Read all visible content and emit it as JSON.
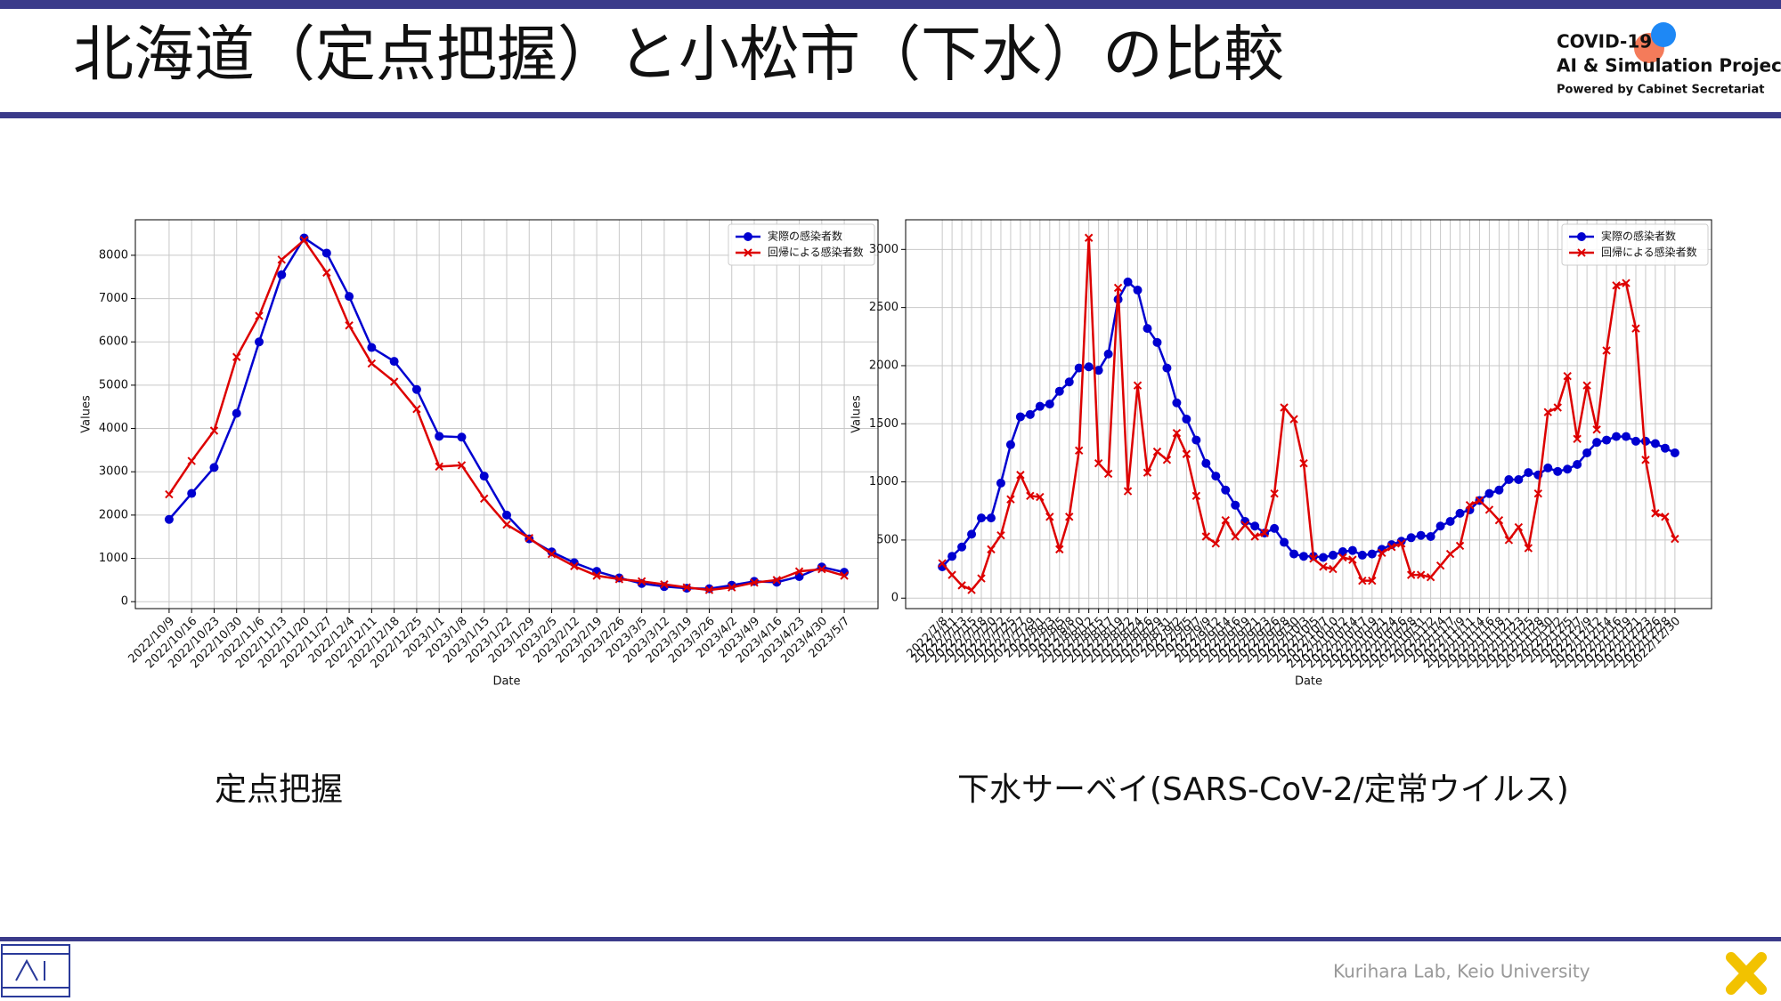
{
  "slide": {
    "title": "北海道（定点把握）と小松市（下水）の比較",
    "logo": [
      "COVID-19",
      "AI & Simulation Project",
      "Powered by Cabinet Secretariat"
    ],
    "captions": [
      "定点把握",
      "下水サーベイ(SARS-CoV-2/定常ウイルス)"
    ],
    "footer": "Kurihara Lab, Keio University"
  },
  "chart_data": [
    {
      "type": "line",
      "xlabel": "Date",
      "ylabel": "Values",
      "grid": true,
      "legend": "upper right",
      "categories": [
        "2022/10/9",
        "2022/10/16",
        "2022/10/23",
        "2022/10/30",
        "2022/11/6",
        "2022/11/13",
        "2022/11/20",
        "2022/11/27",
        "2022/12/4",
        "2022/12/11",
        "2022/12/18",
        "2022/12/25",
        "2023/1/1",
        "2023/1/8",
        "2023/1/15",
        "2023/1/22",
        "2023/1/29",
        "2023/2/5",
        "2023/2/12",
        "2023/2/19",
        "2023/2/26",
        "2023/3/5",
        "2023/3/12",
        "2023/3/19",
        "2023/3/26",
        "2023/4/2",
        "2023/4/9",
        "2023/4/16",
        "2023/4/23",
        "2023/4/30",
        "2023/5/7"
      ],
      "series": [
        {
          "name": "実際の感染者数",
          "color": "#0000d0",
          "marker": "o",
          "values": [
            1900,
            2500,
            3100,
            4350,
            6000,
            7550,
            8400,
            8050,
            7050,
            5870,
            5550,
            4900,
            3820,
            3800,
            2900,
            2000,
            1450,
            1150,
            900,
            700,
            550,
            420,
            350,
            310,
            300,
            380,
            470,
            450,
            580,
            800,
            680
          ]
        },
        {
          "name": "回帰による感染者数",
          "color": "#dd0000",
          "marker": "x",
          "values": [
            2480,
            3250,
            3950,
            5650,
            6600,
            7900,
            8350,
            7600,
            6380,
            5500,
            5080,
            4450,
            3120,
            3150,
            2380,
            1780,
            1470,
            1100,
            820,
            600,
            520,
            470,
            400,
            330,
            270,
            330,
            440,
            500,
            700,
            750,
            600
          ]
        }
      ],
      "ylim": [
        -160,
        8820
      ],
      "yticks": [
        0,
        1000,
        2000,
        3000,
        4000,
        5000,
        6000,
        7000,
        8000
      ]
    },
    {
      "type": "line",
      "xlabel": "Date",
      "ylabel": "Values",
      "grid": true,
      "legend": "upper right",
      "categories": [
        "2022/7/8",
        "2022/7/11",
        "2022/7/13",
        "2022/7/15",
        "2022/7/18",
        "2022/7/20",
        "2022/7/22",
        "2022/7/25",
        "2022/7/27",
        "2022/7/29",
        "2022/8/1",
        "2022/8/3",
        "2022/8/5",
        "2022/8/8",
        "2022/8/10",
        "2022/8/12",
        "2022/8/15",
        "2022/8/17",
        "2022/8/19",
        "2022/8/22",
        "2022/8/24",
        "2022/8/26",
        "2022/8/29",
        "2022/8/31",
        "2022/9/2",
        "2022/9/5",
        "2022/9/7",
        "2022/9/9",
        "2022/9/12",
        "2022/9/14",
        "2022/9/16",
        "2022/9/19",
        "2022/9/21",
        "2022/9/23",
        "2022/9/26",
        "2022/9/28",
        "2022/9/30",
        "2022/10/3",
        "2022/10/5",
        "2022/10/7",
        "2022/10/10",
        "2022/10/12",
        "2022/10/14",
        "2022/10/17",
        "2022/10/19",
        "2022/10/21",
        "2022/10/24",
        "2022/10/26",
        "2022/10/28",
        "2022/10/31",
        "2022/11/2",
        "2022/11/4",
        "2022/11/7",
        "2022/11/9",
        "2022/11/11",
        "2022/11/14",
        "2022/11/16",
        "2022/11/18",
        "2022/11/21",
        "2022/11/23",
        "2022/11/25",
        "2022/11/28",
        "2022/11/30",
        "2022/12/2",
        "2022/12/5",
        "2022/12/7",
        "2022/12/9",
        "2022/12/12",
        "2022/12/14",
        "2022/12/16",
        "2022/12/19",
        "2022/12/21",
        "2022/12/23",
        "2022/12/26",
        "2022/12/28",
        "2022/12/30"
      ],
      "series": [
        {
          "name": "実際の感染者数",
          "color": "#0000d0",
          "marker": "o",
          "values": [
            270,
            360,
            440,
            550,
            690,
            690,
            990,
            1320,
            1560,
            1580,
            1650,
            1670,
            1780,
            1860,
            1980,
            1990,
            1960,
            2100,
            2570,
            2720,
            2650,
            2320,
            2200,
            1980,
            1680,
            1540,
            1360,
            1160,
            1050,
            930,
            800,
            660,
            620,
            560,
            600,
            480,
            380,
            360,
            360,
            350,
            370,
            400,
            410,
            370,
            380,
            420,
            460,
            490,
            520,
            540,
            530,
            620,
            660,
            730,
            760,
            840,
            900,
            930,
            1020,
            1020,
            1080,
            1060,
            1120,
            1090,
            1110,
            1150,
            1250,
            1340,
            1360,
            1390,
            1390,
            1350,
            1350,
            1330,
            1290,
            1250
          ]
        },
        {
          "name": "回帰による感染者数",
          "color": "#dd0000",
          "marker": "x",
          "values": [
            300,
            200,
            110,
            70,
            170,
            420,
            540,
            850,
            1060,
            880,
            870,
            700,
            420,
            700,
            1270,
            3100,
            1160,
            1070,
            2670,
            920,
            1830,
            1080,
            1260,
            1190,
            1420,
            1240,
            880,
            530,
            470,
            670,
            530,
            630,
            530,
            560,
            900,
            1640,
            1540,
            1160,
            340,
            270,
            250,
            350,
            330,
            150,
            150,
            390,
            440,
            470,
            200,
            200,
            180,
            280,
            380,
            450,
            800,
            840,
            760,
            670,
            500,
            610,
            430,
            900,
            1600,
            1640,
            1910,
            1370,
            1830,
            1450,
            2130,
            2690,
            2710,
            2320,
            1190,
            730,
            700,
            510
          ]
        }
      ],
      "ylim": [
        -90,
        3255
      ],
      "yticks": [
        0,
        500,
        1000,
        1500,
        2000,
        2500,
        3000
      ]
    }
  ]
}
